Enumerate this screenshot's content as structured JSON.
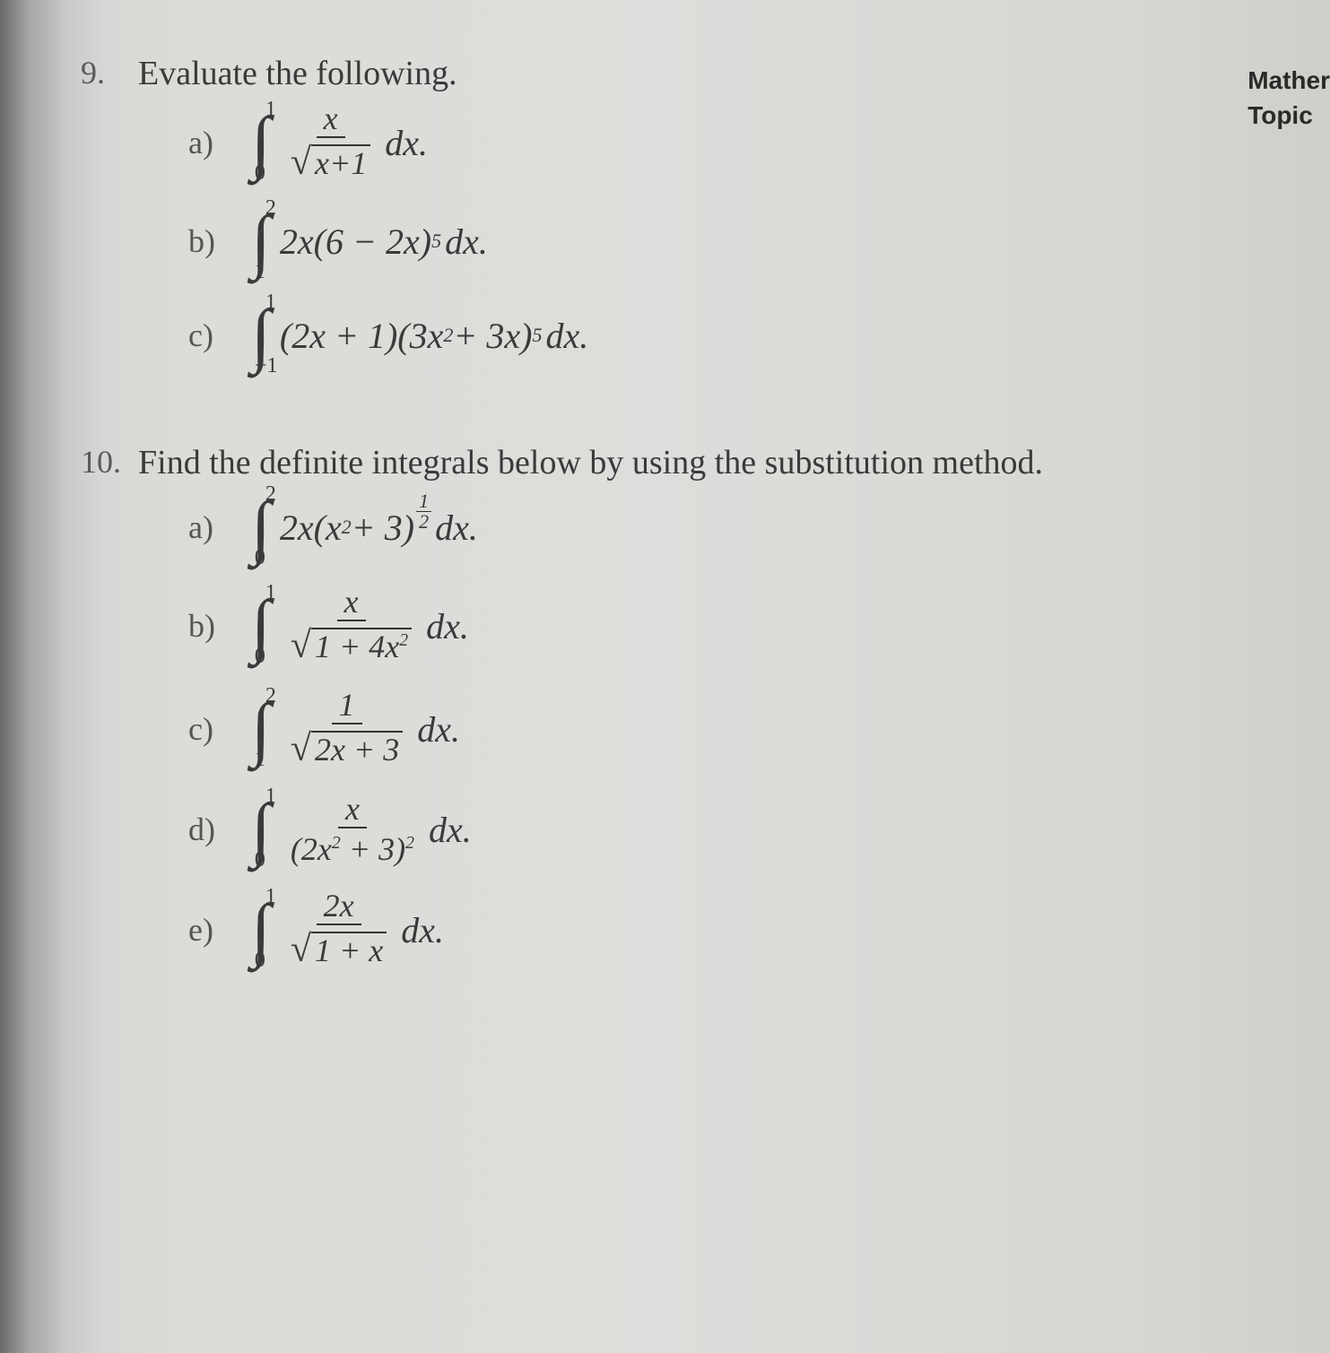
{
  "corner": {
    "line1": "Mather",
    "line2": "Topic"
  },
  "q9": {
    "number": "9.",
    "text": "Evaluate the following.",
    "items": {
      "a": {
        "label": "a)",
        "upper": "1",
        "lower": "0",
        "num": "x",
        "sqrt_arg": "x+1",
        "dx": "dx."
      },
      "b": {
        "label": "b)",
        "upper": "2",
        "lower": "1",
        "body": "2x(6 − 2x)",
        "exp": "5",
        "dx": "dx."
      },
      "c": {
        "label": "c)",
        "upper": "1",
        "lower": "−1",
        "f1": "(2x + 1)(3x",
        "e1": "2",
        "f2": " + 3x)",
        "e2": "5",
        "dx": "dx."
      }
    }
  },
  "q10": {
    "number": "10.",
    "text": "Find the definite integrals below by using the substitution method.",
    "items": {
      "a": {
        "label": "a)",
        "upper": "2",
        "lower": "0",
        "body": "2x(x",
        "e1": "2",
        "body2": " + 3)",
        "fe_num": "1",
        "fe_den": "2",
        "dx": "dx."
      },
      "b": {
        "label": "b)",
        "upper": "1",
        "lower": "0",
        "num": "x",
        "sqrt_arg": "1 + 4x",
        "sqrt_exp": "2",
        "dx": "dx."
      },
      "c": {
        "label": "c)",
        "upper": "2",
        "lower": "1",
        "num": "1",
        "sqrt_arg": "2x + 3",
        "dx": "dx."
      },
      "d": {
        "label": "d)",
        "upper": "1",
        "lower": "0",
        "num": "x",
        "den1": "(2x",
        "de1": "2",
        "den2": " + 3)",
        "de2": "2",
        "dx": "dx."
      },
      "e": {
        "label": "e)",
        "upper": "1",
        "lower": "0",
        "num": "2x",
        "sqrt_arg": "1 + x",
        "dx": "dx."
      }
    }
  }
}
